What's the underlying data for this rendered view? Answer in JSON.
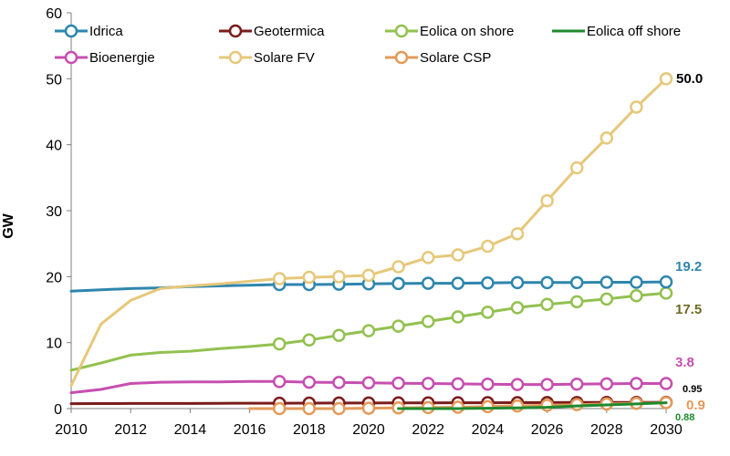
{
  "chart_data": {
    "type": "line",
    "title": "",
    "xlabel": "",
    "ylabel": "GW",
    "xlim": [
      2010,
      2030
    ],
    "ylim": [
      0,
      60
    ],
    "x_ticks": [
      2010,
      2012,
      2014,
      2016,
      2018,
      2020,
      2022,
      2024,
      2026,
      2028,
      2030
    ],
    "y_ticks": [
      0,
      10,
      20,
      30,
      40,
      50,
      60
    ],
    "grid": false,
    "legend_position": "top",
    "series": [
      {
        "name": "Idrica",
        "color": "#2e86ad",
        "markers_from": 2017,
        "x": [
          2010,
          2011,
          2012,
          2013,
          2014,
          2015,
          2016,
          2017,
          2018,
          2019,
          2020,
          2021,
          2022,
          2023,
          2024,
          2025,
          2026,
          2027,
          2028,
          2029,
          2030
        ],
        "values": [
          17.8,
          18.0,
          18.2,
          18.3,
          18.5,
          18.6,
          18.7,
          18.8,
          18.8,
          18.85,
          18.9,
          18.95,
          19.0,
          19.0,
          19.05,
          19.1,
          19.1,
          19.1,
          19.15,
          19.15,
          19.2
        ]
      },
      {
        "name": "Geotermica",
        "color": "#7b1c1c",
        "markers_from": 2017,
        "x": [
          2010,
          2011,
          2012,
          2013,
          2014,
          2015,
          2016,
          2017,
          2018,
          2019,
          2020,
          2021,
          2022,
          2023,
          2024,
          2025,
          2026,
          2027,
          2028,
          2029,
          2030
        ],
        "values": [
          0.75,
          0.76,
          0.77,
          0.77,
          0.78,
          0.8,
          0.81,
          0.82,
          0.83,
          0.84,
          0.85,
          0.86,
          0.87,
          0.88,
          0.89,
          0.9,
          0.91,
          0.92,
          0.93,
          0.94,
          0.95
        ]
      },
      {
        "name": "Eolica on shore",
        "color": "#92c14f",
        "markers_from": 2017,
        "x": [
          2010,
          2011,
          2012,
          2013,
          2014,
          2015,
          2016,
          2017,
          2018,
          2019,
          2020,
          2021,
          2022,
          2023,
          2024,
          2025,
          2026,
          2027,
          2028,
          2029,
          2030
        ],
        "values": [
          5.8,
          6.9,
          8.1,
          8.5,
          8.7,
          9.1,
          9.4,
          9.8,
          10.4,
          11.1,
          11.8,
          12.5,
          13.2,
          13.9,
          14.6,
          15.3,
          15.8,
          16.2,
          16.6,
          17.1,
          17.5
        ]
      },
      {
        "name": "Eolica off  shore",
        "color": "#1e8a2e",
        "markers_from": null,
        "x": [
          2021,
          2022,
          2023,
          2024,
          2025,
          2026,
          2027,
          2028,
          2029,
          2030
        ],
        "values": [
          0.0,
          0.0,
          0.0,
          0.05,
          0.1,
          0.2,
          0.4,
          0.55,
          0.7,
          0.88
        ]
      },
      {
        "name": "Bioenergie",
        "color": "#c64fb0",
        "markers_from": 2017,
        "x": [
          2010,
          2011,
          2012,
          2013,
          2014,
          2015,
          2016,
          2017,
          2018,
          2019,
          2020,
          2021,
          2022,
          2023,
          2024,
          2025,
          2026,
          2027,
          2028,
          2029,
          2030
        ],
        "values": [
          2.4,
          2.9,
          3.8,
          4.0,
          4.05,
          4.05,
          4.1,
          4.1,
          4.0,
          3.95,
          3.9,
          3.85,
          3.8,
          3.75,
          3.7,
          3.65,
          3.65,
          3.7,
          3.75,
          3.8,
          3.8
        ]
      },
      {
        "name": "Solare FV",
        "color": "#e6c87a",
        "markers_from": 2017,
        "x": [
          2010,
          2011,
          2012,
          2013,
          2014,
          2015,
          2016,
          2017,
          2018,
          2019,
          2020,
          2021,
          2022,
          2023,
          2024,
          2025,
          2026,
          2027,
          2028,
          2029,
          2030
        ],
        "values": [
          3.5,
          12.8,
          16.4,
          18.2,
          18.6,
          18.9,
          19.3,
          19.7,
          19.9,
          20.0,
          20.2,
          21.5,
          22.9,
          23.3,
          24.6,
          26.5,
          31.5,
          36.5,
          41.0,
          45.7,
          50.0
        ]
      },
      {
        "name": "Solare CSP",
        "color": "#e39a5a",
        "markers_from": 2017,
        "x": [
          2016,
          2017,
          2018,
          2019,
          2020,
          2021,
          2022,
          2023,
          2024,
          2025,
          2026,
          2027,
          2028,
          2029,
          2030
        ],
        "values": [
          0.0,
          0.0,
          0.0,
          0.0,
          0.05,
          0.1,
          0.15,
          0.2,
          0.3,
          0.4,
          0.5,
          0.6,
          0.7,
          0.8,
          0.9
        ]
      }
    ],
    "end_labels": [
      {
        "text": "50.0",
        "series": "Solare FV",
        "color": "#000000",
        "size": 15
      },
      {
        "text": "19.2",
        "series": "Idrica",
        "color": "#2e86ad",
        "size": 15
      },
      {
        "text": "17.5",
        "series": "Eolica on shore",
        "color": "#6b6b24",
        "size": 15
      },
      {
        "text": "3.8",
        "series": "Bioenergie",
        "color": "#c64fb0",
        "size": 15
      },
      {
        "text": "0.95",
        "series": "Geotermica",
        "color": "#000000",
        "size": 11
      },
      {
        "text": "0.9",
        "series": "Solare CSP",
        "color": "#e39a5a",
        "size": 15
      },
      {
        "text": "0.88",
        "series": "Eolica off  shore",
        "color": "#1e8a2e",
        "size": 11
      }
    ]
  }
}
